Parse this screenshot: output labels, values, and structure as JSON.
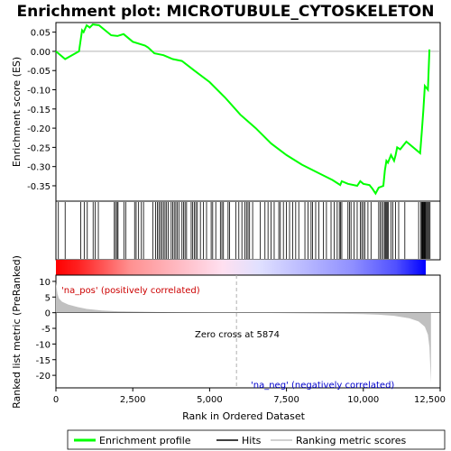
{
  "chart_data": {
    "type": "line",
    "title": "Enrichment plot: MICROTUBULE_CYTOSKELETON",
    "xlabel": "Rank in Ordered Dataset",
    "ylabel_top": "Enrichment score (ES)",
    "ylabel_bottom": "Ranked list metric (PreRanked)",
    "xlim": [
      0,
      12500
    ],
    "x_ticks": [
      0,
      2500,
      5000,
      7500,
      10000,
      12500
    ],
    "x_tick_labels": [
      "0",
      "2,500",
      "5,000",
      "7,500",
      "10,000",
      "12,500"
    ],
    "es_ylim": [
      -0.39,
      0.075
    ],
    "es_y_ticks": [
      0.05,
      0.0,
      -0.05,
      -0.1,
      -0.15,
      -0.2,
      -0.25,
      -0.3,
      -0.35
    ],
    "es_y_tick_labels": [
      "0.05",
      "0.00",
      "-0.05",
      "-0.10",
      "-0.15",
      "-0.20",
      "-0.25",
      "-0.30",
      "-0.35"
    ],
    "metric_ylim": [
      -24,
      12
    ],
    "metric_y_ticks": [
      10,
      5,
      0,
      -5,
      -10,
      -15,
      -20
    ],
    "metric_y_tick_labels": [
      "10",
      "5",
      "0",
      "-5",
      "-10",
      "-15",
      "-20"
    ],
    "series": [
      {
        "name": "Enrichment profile",
        "color": "#00ff00",
        "x": [
          0,
          300,
          750,
          850,
          900,
          1000,
          1100,
          1200,
          1400,
          1800,
          2000,
          2200,
          2500,
          2900,
          3000,
          3200,
          3500,
          3800,
          4100,
          4500,
          5000,
          5500,
          6000,
          6500,
          7000,
          7500,
          8000,
          8500,
          9000,
          9250,
          9300,
          9500,
          9800,
          9900,
          10000,
          10200,
          10300,
          10400,
          10500,
          10650,
          10700,
          10750,
          10800,
          10900,
          11000,
          11050,
          11100,
          11200,
          11400,
          11850,
          11900,
          11950,
          12000,
          12100,
          12150
        ],
        "y": [
          0.0,
          -0.02,
          0.0,
          0.055,
          0.05,
          0.068,
          0.062,
          0.07,
          0.068,
          0.042,
          0.04,
          0.045,
          0.025,
          0.015,
          0.01,
          -0.005,
          -0.01,
          -0.02,
          -0.025,
          -0.05,
          -0.08,
          -0.12,
          -0.165,
          -0.2,
          -0.24,
          -0.27,
          -0.295,
          -0.315,
          -0.335,
          -0.348,
          -0.338,
          -0.345,
          -0.35,
          -0.338,
          -0.345,
          -0.348,
          -0.358,
          -0.37,
          -0.355,
          -0.35,
          -0.31,
          -0.285,
          -0.29,
          -0.27,
          -0.285,
          -0.27,
          -0.25,
          -0.255,
          -0.235,
          -0.265,
          -0.21,
          -0.155,
          -0.09,
          -0.1,
          0.005
        ]
      }
    ],
    "hits": [
      80,
      300,
      810,
      920,
      1020,
      1210,
      1280,
      1380,
      1900,
      1940,
      1990,
      2020,
      2210,
      2270,
      2560,
      2610,
      2690,
      2780,
      2850,
      3150,
      3240,
      3300,
      3350,
      3400,
      3450,
      3500,
      3550,
      3600,
      3650,
      3750,
      3800,
      3850,
      3900,
      3950,
      4000,
      4100,
      4150,
      4200,
      4250,
      4400,
      4450,
      4500,
      4550,
      4600,
      4700,
      4800,
      4900,
      5050,
      5100,
      5200,
      5350,
      5400,
      5450,
      5600,
      5650,
      5850,
      5950,
      6050,
      6150,
      6200,
      6250,
      6300,
      6400,
      6650,
      6800,
      6900,
      7000,
      7100,
      7250,
      7300,
      7400,
      7500,
      7600,
      7700,
      7800,
      7900,
      8100,
      8200,
      8300,
      8350,
      8450,
      8550,
      8700,
      8800,
      8950,
      9050,
      9150,
      9220,
      9260,
      9300,
      9500,
      9550,
      9600,
      9700,
      9800,
      9900,
      9950,
      10000,
      10050,
      10150,
      10250,
      10500,
      10550,
      10600,
      10650,
      10700,
      10730,
      10760,
      10790,
      10820,
      10900,
      10960,
      11050,
      11150,
      11350,
      11800,
      11870,
      11900,
      11920,
      11940,
      11960,
      11980,
      12000,
      12020,
      12050,
      12080,
      12110,
      12140,
      12170
    ],
    "metric_curve": {
      "x": [
        0,
        50,
        100,
        200,
        400,
        700,
        1000,
        1500,
        2000,
        3000,
        4000,
        5000,
        5874,
        7000,
        8000,
        9000,
        10000,
        10500,
        11000,
        11500,
        11800,
        12000,
        12100,
        12150,
        12200
      ],
      "y": [
        9.5,
        6,
        4.5,
        3.5,
        2.6,
        1.8,
        1.2,
        0.7,
        0.45,
        0.25,
        0.12,
        0.05,
        0.0,
        -0.1,
        -0.2,
        -0.3,
        -0.45,
        -0.65,
        -1.0,
        -1.8,
        -2.8,
        -4.5,
        -7,
        -11,
        -22.5
      ]
    },
    "zero_cross_label": "Zero cross at 5874",
    "zero_cross_x": 5874,
    "pos_label": "'na_pos' (positively correlated)",
    "neg_label": "'na_neg' (negatively correlated)",
    "legend": {
      "placement": "bottom",
      "items": [
        {
          "label": "Enrichment profile",
          "color": "#00ff00",
          "kind": "thick-line"
        },
        {
          "label": "Hits",
          "color": "#000000",
          "kind": "line"
        },
        {
          "label": "Ranking metric scores",
          "color": "#c0c0c0",
          "kind": "line"
        }
      ]
    },
    "colors": {
      "es_line": "#00ff00",
      "hit": "#000000",
      "metric_fill": "#c0c0c0",
      "zero_line": "#b0b0b0",
      "pos_text": "#cc0000",
      "neg_text": "#0000cc",
      "bar_red": "#ff0000",
      "bar_blue": "#0000ff"
    }
  }
}
